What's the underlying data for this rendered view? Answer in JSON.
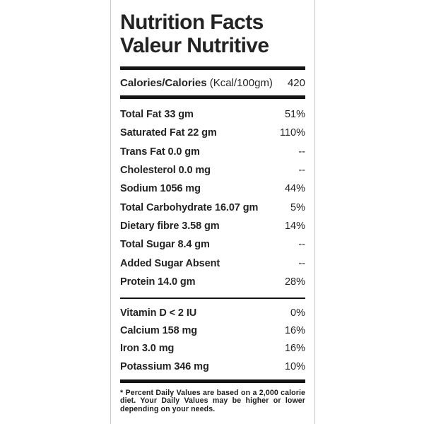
{
  "colors": {
    "background": "#ffffff",
    "text": "#232323",
    "bar": "#141414",
    "frame_border": "#c9c9c9"
  },
  "header": {
    "title_line1": "Nutrition Facts",
    "title_line2": "Valeur Nutritive"
  },
  "calories_row": {
    "label": "Calories/Calories",
    "unit": " (Kcal/100gm)",
    "value": "420"
  },
  "nutrients": [
    {
      "name": "Total Fat 33 gm",
      "dv": "51%"
    },
    {
      "name": "Saturated Fat 22 gm",
      "dv": "110%"
    },
    {
      "name": "Trans Fat 0.0 gm",
      "dv": "--"
    },
    {
      "name": "Cholesterol 0.0 mg",
      "dv": "--"
    },
    {
      "name": "Sodium 1056 mg",
      "dv": "44%"
    },
    {
      "name": "Total Carbohydrate 16.07 gm",
      "dv": "5%"
    },
    {
      "name": "Dietary fibre 3.58 gm",
      "dv": "14%"
    },
    {
      "name": "Total Sugar 8.4 gm",
      "dv": "--"
    },
    {
      "name": "Added Sugar Absent",
      "dv": "--"
    },
    {
      "name": "Protein 14.0 gm",
      "dv": "28%"
    }
  ],
  "micronutrients": [
    {
      "name": "Vitamin D < 2 IU",
      "dv": "0%"
    },
    {
      "name": "Calcium 158 mg",
      "dv": "16%"
    },
    {
      "name": "Iron 3.0 mg",
      "dv": "16%"
    },
    {
      "name": "Potassium 346 mg",
      "dv": "10%"
    }
  ],
  "footnote": "* Percent Daily Values are based on a 2,000 calorie diet. Your Daily Values may be higher or lower depending on your needs."
}
